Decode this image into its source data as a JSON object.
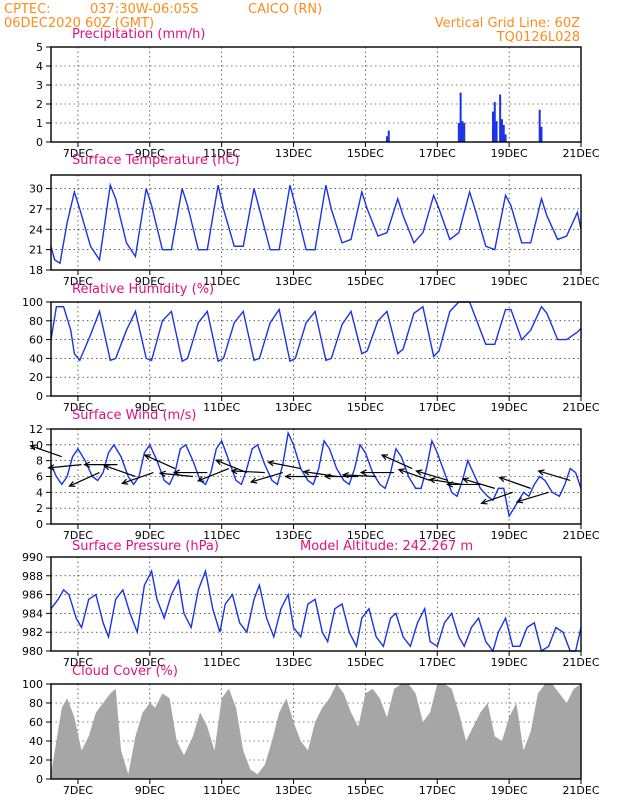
{
  "header": {
    "source": "CPTEC:",
    "coords": "037:30W-06:05S",
    "station": "CAICO (RN)",
    "init": "06DEC2020 60Z (GMT)",
    "grid_note": "Vertical Grid Line: 60Z",
    "model": "TQ0126L028"
  },
  "colors": {
    "header": "#ff8c1a",
    "title": "#e0117f",
    "series": "#1a33e6",
    "cloud": "#a6a6a6"
  },
  "chart_data": [
    {
      "id": "precip",
      "type": "bar",
      "title": "Precipitation (mm/h)",
      "ylim": [
        0,
        5
      ],
      "yticks": [
        0,
        1,
        2,
        3,
        4,
        5
      ],
      "xlim": [
        6.25,
        21.0
      ],
      "xticks": [
        "7DEC",
        "9DEC",
        "11DEC",
        "13DEC",
        "15DEC",
        "17DEC",
        "19DEC",
        "21DEC"
      ],
      "x": [
        15.6,
        15.65,
        17.6,
        17.65,
        17.7,
        17.75,
        18.55,
        18.6,
        18.65,
        18.75,
        18.8,
        18.85,
        18.9,
        19.85,
        19.9
      ],
      "values": [
        0.3,
        0.6,
        1.0,
        2.6,
        1.1,
        1.0,
        1.6,
        2.1,
        1.1,
        2.5,
        1.2,
        0.9,
        0.4,
        1.7,
        0.8
      ],
      "grid": true
    },
    {
      "id": "temp",
      "type": "line",
      "title": "Surface Temperature (nC)",
      "ylim": [
        18,
        32
      ],
      "yticks": [
        18,
        21,
        24,
        27,
        30
      ],
      "xlim": [
        6.25,
        21.0
      ],
      "xticks": [
        "7DEC",
        "9DEC",
        "11DEC",
        "13DEC",
        "15DEC",
        "17DEC",
        "19DEC",
        "21DEC"
      ],
      "series": [
        {
          "x": [
            6.25,
            6.35,
            6.5,
            6.7,
            6.9,
            7.05,
            7.35,
            7.6,
            7.9,
            8.05,
            8.35,
            8.6,
            8.9,
            9.05,
            9.35,
            9.6,
            9.9,
            10.05,
            10.35,
            10.6,
            10.9,
            11.05,
            11.35,
            11.6,
            11.9,
            12.05,
            12.35,
            12.6,
            12.9,
            13.05,
            13.35,
            13.6,
            13.9,
            14.05,
            14.35,
            14.6,
            14.9,
            15.05,
            15.35,
            15.6,
            15.9,
            16.05,
            16.35,
            16.6,
            16.9,
            17.05,
            17.35,
            17.6,
            17.9,
            18.05,
            18.35,
            18.6,
            18.9,
            19.05,
            19.35,
            19.6,
            19.9,
            20.05,
            20.35,
            20.6,
            20.9,
            21.0
          ],
          "values": [
            21.5,
            19.5,
            19.0,
            25.0,
            29.5,
            27.0,
            21.5,
            19.5,
            30.5,
            28.5,
            22.0,
            20.0,
            30.0,
            27.5,
            21.0,
            21.0,
            30.0,
            27.5,
            21.0,
            21.0,
            30.5,
            27.0,
            21.5,
            21.5,
            30.0,
            27.0,
            21.0,
            21.0,
            30.5,
            27.5,
            21.0,
            21.0,
            30.5,
            27.0,
            22.0,
            22.5,
            29.5,
            27.0,
            23.0,
            23.5,
            28.5,
            26.0,
            22.0,
            23.5,
            29.0,
            27.0,
            22.5,
            23.5,
            29.5,
            27.0,
            21.5,
            21.0,
            29.0,
            27.5,
            22.0,
            22.0,
            28.5,
            26.0,
            22.5,
            23.0,
            26.5,
            24.0
          ]
        }
      ],
      "grid": true
    },
    {
      "id": "rh",
      "type": "line",
      "title": "Relative Humidity (%)",
      "ylim": [
        0,
        100
      ],
      "yticks": [
        0,
        20,
        40,
        60,
        80,
        100
      ],
      "xlim": [
        6.25,
        21.0
      ],
      "xticks": [
        "7DEC",
        "9DEC",
        "11DEC",
        "13DEC",
        "15DEC",
        "17DEC",
        "19DEC",
        "21DEC"
      ],
      "series": [
        {
          "x": [
            6.25,
            6.4,
            6.6,
            6.8,
            6.9,
            7.05,
            7.35,
            7.6,
            7.9,
            8.05,
            8.35,
            8.6,
            8.9,
            9.05,
            9.35,
            9.6,
            9.9,
            10.05,
            10.35,
            10.6,
            10.9,
            11.05,
            11.35,
            11.6,
            11.9,
            12.05,
            12.35,
            12.6,
            12.9,
            13.05,
            13.35,
            13.6,
            13.9,
            14.05,
            14.35,
            14.6,
            14.9,
            15.05,
            15.35,
            15.6,
            15.9,
            16.05,
            16.35,
            16.6,
            16.9,
            17.05,
            17.35,
            17.6,
            17.9,
            18.05,
            18.35,
            18.6,
            18.9,
            19.05,
            19.35,
            19.6,
            19.9,
            20.05,
            20.35,
            20.6,
            20.9,
            21.0
          ],
          "values": [
            60,
            95,
            95,
            70,
            45,
            38,
            65,
            90,
            38,
            40,
            70,
            90,
            40,
            38,
            80,
            90,
            37,
            40,
            78,
            90,
            37,
            40,
            78,
            90,
            38,
            40,
            78,
            92,
            37,
            40,
            78,
            90,
            38,
            40,
            76,
            90,
            45,
            48,
            80,
            90,
            45,
            50,
            88,
            95,
            42,
            48,
            90,
            100,
            100,
            85,
            55,
            55,
            92,
            92,
            60,
            70,
            95,
            88,
            60,
            60,
            68,
            72
          ]
        }
      ],
      "grid": true
    },
    {
      "id": "wind",
      "type": "line",
      "title": "Surface Wind (m/s)",
      "ylim": [
        0,
        12
      ],
      "yticks": [
        0,
        2,
        4,
        6,
        8,
        10,
        12
      ],
      "xlim": [
        6.25,
        21.0
      ],
      "xticks": [
        "7DEC",
        "9DEC",
        "11DEC",
        "13DEC",
        "15DEC",
        "17DEC",
        "19DEC",
        "21DEC"
      ],
      "series": [
        {
          "x": [
            6.25,
            6.4,
            6.55,
            6.7,
            6.85,
            7.0,
            7.2,
            7.4,
            7.55,
            7.7,
            7.85,
            8.0,
            8.2,
            8.4,
            8.55,
            8.7,
            8.85,
            9.0,
            9.2,
            9.4,
            9.55,
            9.7,
            9.85,
            10.0,
            10.2,
            10.4,
            10.55,
            10.7,
            10.85,
            11.0,
            11.2,
            11.4,
            11.55,
            11.7,
            11.85,
            12.0,
            12.2,
            12.4,
            12.55,
            12.7,
            12.85,
            13.0,
            13.2,
            13.4,
            13.55,
            13.7,
            13.85,
            14.0,
            14.2,
            14.4,
            14.55,
            14.7,
            14.85,
            15.0,
            15.2,
            15.4,
            15.55,
            15.7,
            15.85,
            16.0,
            16.2,
            16.4,
            16.55,
            16.7,
            16.85,
            17.0,
            17.2,
            17.4,
            17.55,
            17.7,
            17.85,
            18.0,
            18.2,
            18.4,
            18.55,
            18.7,
            18.85,
            19.0,
            19.2,
            19.4,
            19.55,
            19.7,
            19.85,
            20.0,
            20.2,
            20.4,
            20.55,
            20.7,
            20.85,
            21.0
          ],
          "values": [
            7.5,
            6.0,
            5.0,
            6.0,
            8.5,
            9.5,
            8.0,
            6.0,
            5.5,
            6.5,
            9.0,
            10.0,
            8.5,
            6.0,
            5.0,
            6.0,
            9.0,
            10.0,
            8.0,
            5.5,
            5.0,
            6.5,
            9.5,
            10.0,
            8.0,
            5.5,
            5.0,
            6.5,
            9.5,
            10.5,
            8.0,
            5.5,
            5.0,
            7.0,
            9.5,
            10.0,
            7.5,
            5.5,
            5.0,
            7.5,
            11.5,
            10.0,
            7.0,
            5.5,
            5.0,
            7.0,
            10.5,
            9.5,
            7.0,
            5.5,
            5.0,
            7.0,
            10.0,
            9.0,
            6.5,
            5.0,
            4.5,
            6.5,
            9.5,
            8.5,
            6.0,
            4.5,
            4.5,
            7.0,
            10.5,
            9.0,
            6.5,
            4.0,
            3.5,
            5.5,
            8.0,
            6.5,
            4.5,
            3.5,
            3.0,
            4.5,
            4.5,
            1.0,
            2.5,
            4.0,
            3.5,
            5.0,
            6.0,
            5.5,
            4.0,
            3.5,
            5.0,
            7.0,
            6.5,
            4.5
          ]
        }
      ],
      "grid": true
    },
    {
      "id": "pressure",
      "type": "line",
      "title": "Surface Pressure (hPa)",
      "subtitle": "Model Altitude: 242.267 m",
      "ylim": [
        980,
        990
      ],
      "yticks": [
        980,
        982,
        984,
        986,
        988,
        990
      ],
      "xlim": [
        6.25,
        21.0
      ],
      "xticks": [
        "7DEC",
        "9DEC",
        "11DEC",
        "13DEC",
        "15DEC",
        "17DEC",
        "19DEC",
        "21DEC"
      ],
      "series": [
        {
          "x": [
            6.25,
            6.45,
            6.6,
            6.75,
            6.95,
            7.1,
            7.3,
            7.5,
            7.7,
            7.85,
            8.05,
            8.25,
            8.45,
            8.65,
            8.85,
            9.05,
            9.2,
            9.4,
            9.6,
            9.8,
            9.95,
            10.15,
            10.35,
            10.55,
            10.75,
            10.95,
            11.1,
            11.3,
            11.5,
            11.7,
            11.9,
            12.05,
            12.25,
            12.45,
            12.65,
            12.85,
            13.0,
            13.2,
            13.4,
            13.6,
            13.8,
            13.95,
            14.15,
            14.35,
            14.55,
            14.75,
            14.9,
            15.1,
            15.3,
            15.5,
            15.7,
            15.85,
            16.05,
            16.25,
            16.45,
            16.65,
            16.8,
            17.0,
            17.2,
            17.4,
            17.6,
            17.75,
            17.95,
            18.15,
            18.35,
            18.55,
            18.7,
            18.9,
            19.1,
            19.3,
            19.5,
            19.7,
            19.9,
            20.1,
            20.3,
            20.5,
            20.7,
            20.85,
            21.0
          ],
          "values": [
            984.5,
            985.5,
            986.5,
            986.0,
            983.5,
            982.5,
            985.5,
            986.0,
            983.0,
            981.5,
            985.5,
            986.5,
            984.0,
            982.0,
            987.0,
            988.5,
            985.5,
            983.5,
            986.0,
            987.5,
            984.0,
            982.5,
            986.5,
            988.5,
            984.5,
            982.0,
            985.0,
            986.0,
            983.0,
            982.0,
            985.5,
            987.0,
            983.5,
            981.5,
            984.5,
            986.0,
            982.5,
            981.5,
            985.0,
            985.5,
            982.0,
            981.0,
            984.5,
            985.0,
            982.0,
            980.5,
            983.5,
            984.5,
            981.5,
            980.5,
            983.5,
            984.0,
            981.5,
            980.5,
            983.0,
            984.5,
            981.0,
            980.5,
            983.0,
            984.0,
            981.5,
            980.5,
            982.5,
            983.5,
            981.0,
            980.0,
            982.0,
            983.5,
            980.5,
            980.5,
            982.5,
            983.0,
            980.0,
            980.5,
            982.5,
            982.0,
            980.0,
            980.0,
            982.5
          ]
        }
      ],
      "grid": true
    },
    {
      "id": "cloud",
      "type": "area",
      "title": "Cloud Cover (%)",
      "ylim": [
        0,
        100
      ],
      "yticks": [
        0,
        20,
        40,
        60,
        80,
        100
      ],
      "xlim": [
        6.25,
        21.0
      ],
      "xticks": [
        "7DEC",
        "9DEC",
        "11DEC",
        "13DEC",
        "15DEC",
        "17DEC",
        "19DEC",
        "21DEC"
      ],
      "series": [
        {
          "x": [
            6.25,
            6.55,
            6.7,
            6.9,
            7.1,
            7.3,
            7.5,
            7.7,
            7.9,
            8.05,
            8.2,
            8.4,
            8.6,
            8.8,
            9.0,
            9.15,
            9.35,
            9.55,
            9.75,
            9.95,
            10.2,
            10.4,
            10.6,
            10.8,
            11.0,
            11.2,
            11.4,
            11.6,
            11.8,
            12.0,
            12.2,
            12.4,
            12.6,
            12.8,
            13.0,
            13.2,
            13.4,
            13.6,
            13.8,
            14.0,
            14.2,
            14.4,
            14.6,
            14.8,
            15.0,
            15.2,
            15.4,
            15.6,
            15.8,
            16.0,
            16.2,
            16.4,
            16.6,
            16.8,
            17.0,
            17.2,
            17.4,
            17.6,
            17.8,
            18.0,
            18.2,
            18.4,
            18.6,
            18.8,
            19.0,
            19.2,
            19.4,
            19.6,
            19.8,
            20.0,
            20.2,
            20.4,
            20.6,
            20.8,
            21.0
          ],
          "values": [
            5,
            75,
            85,
            65,
            30,
            45,
            70,
            80,
            90,
            95,
            30,
            5,
            45,
            70,
            80,
            75,
            90,
            85,
            40,
            25,
            45,
            70,
            55,
            30,
            85,
            95,
            75,
            30,
            10,
            5,
            15,
            40,
            70,
            85,
            60,
            40,
            30,
            60,
            75,
            85,
            100,
            90,
            70,
            55,
            90,
            95,
            85,
            65,
            95,
            100,
            100,
            90,
            60,
            70,
            100,
            100,
            95,
            70,
            40,
            55,
            70,
            80,
            45,
            40,
            65,
            80,
            30,
            50,
            90,
            100,
            100,
            90,
            80,
            95,
            100
          ]
        }
      ],
      "grid": true
    }
  ],
  "wind_vectors": [
    {
      "x": 6.55,
      "y": 8.5,
      "u": -1.0,
      "v": 0.35
    },
    {
      "x": 7.1,
      "y": 7.5,
      "u": -1.0,
      "v": -0.1
    },
    {
      "x": 7.6,
      "y": 6.5,
      "u": -1.0,
      "v": -0.45
    },
    {
      "x": 8.1,
      "y": 7.5,
      "u": -1.0,
      "v": 0.0
    },
    {
      "x": 8.6,
      "y": 6.0,
      "u": -1.0,
      "v": 0.35
    },
    {
      "x": 9.1,
      "y": 6.5,
      "u": -1.0,
      "v": -0.35
    },
    {
      "x": 9.7,
      "y": 7.0,
      "u": -1.0,
      "v": 0.45
    },
    {
      "x": 10.2,
      "y": 6.0,
      "u": -1.0,
      "v": 0.1
    },
    {
      "x": 10.6,
      "y": 6.5,
      "u": -1.0,
      "v": 0.0
    },
    {
      "x": 11.2,
      "y": 7.0,
      "u": -1.0,
      "v": -0.4
    },
    {
      "x": 11.7,
      "y": 6.5,
      "u": -1.0,
      "v": 0.4
    },
    {
      "x": 12.2,
      "y": 6.5,
      "u": -1.0,
      "v": 0.05
    },
    {
      "x": 12.7,
      "y": 6.5,
      "u": -1.0,
      "v": -0.3
    },
    {
      "x": 13.2,
      "y": 7.0,
      "u": -1.0,
      "v": 0.2
    },
    {
      "x": 13.7,
      "y": 6.0,
      "u": -1.0,
      "v": 0.0
    },
    {
      "x": 14.2,
      "y": 6.0,
      "u": -1.0,
      "v": 0.15
    },
    {
      "x": 14.8,
      "y": 6.0,
      "u": -1.0,
      "v": 0.0
    },
    {
      "x": 15.3,
      "y": 6.0,
      "u": -1.0,
      "v": 0.05
    },
    {
      "x": 15.8,
      "y": 6.5,
      "u": -1.0,
      "v": 0.0
    },
    {
      "x": 16.3,
      "y": 7.0,
      "u": -1.0,
      "v": 0.45
    },
    {
      "x": 16.8,
      "y": 5.5,
      "u": -1.0,
      "v": 0.35
    },
    {
      "x": 17.3,
      "y": 5.5,
      "u": -1.0,
      "v": 0.3
    },
    {
      "x": 17.7,
      "y": 5.0,
      "u": -1.0,
      "v": 0.15
    },
    {
      "x": 18.2,
      "y": 5.0,
      "u": -1.0,
      "v": 0.0
    },
    {
      "x": 18.6,
      "y": 4.5,
      "u": -1.0,
      "v": 0.3
    },
    {
      "x": 19.1,
      "y": 4.0,
      "u": -1.0,
      "v": -0.35
    },
    {
      "x": 19.6,
      "y": 4.5,
      "u": -1.0,
      "v": 0.35
    },
    {
      "x": 20.1,
      "y": 4.0,
      "u": -1.0,
      "v": -0.3
    },
    {
      "x": 20.7,
      "y": 5.5,
      "u": -1.0,
      "v": 0.3
    }
  ]
}
